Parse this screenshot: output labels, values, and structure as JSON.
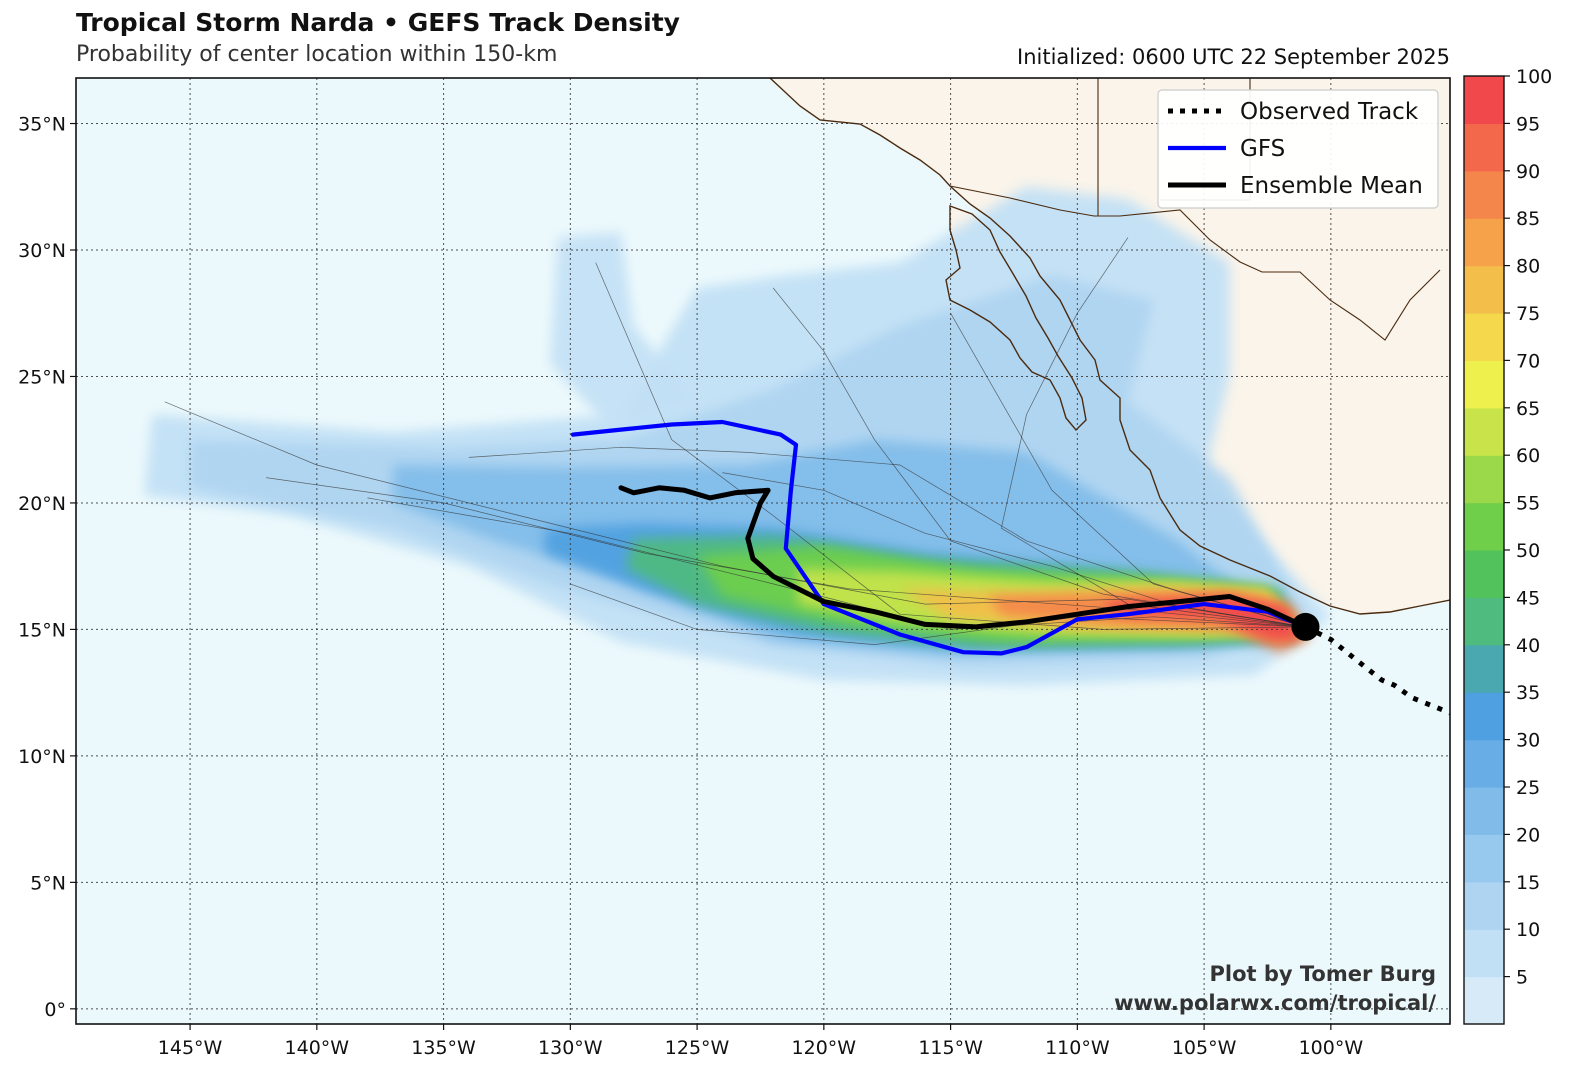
{
  "header": {
    "title": "Tropical Storm Narda • GEFS Track Density",
    "subtitle": "Probability of center location within 150-km",
    "initialized": "Initialized: 0600 UTC 22 September 2025"
  },
  "axes": {
    "lon_labels": [
      "145°W",
      "140°W",
      "135°W",
      "130°W",
      "125°W",
      "120°W",
      "115°W",
      "110°W",
      "105°W",
      "100°W"
    ],
    "lat_labels": [
      "35°N",
      "30°N",
      "25°N",
      "20°N",
      "15°N",
      "10°N",
      "5°N",
      "0°"
    ]
  },
  "legend": {
    "observed": "Observed Track",
    "gfs": "GFS",
    "mean": "Ensemble Mean"
  },
  "colorbar": {
    "ticks": [
      "5",
      "10",
      "15",
      "20",
      "25",
      "30",
      "35",
      "40",
      "45",
      "50",
      "55",
      "60",
      "65",
      "70",
      "75",
      "80",
      "85",
      "90",
      "95",
      "100"
    ],
    "colors": [
      "#d6eaf8",
      "#c2e0f5",
      "#aed4f1",
      "#97c8ee",
      "#80bbe9",
      "#68ade6",
      "#4ea0e0",
      "#4aa9b0",
      "#4fbb7e",
      "#52c35c",
      "#6fcf4a",
      "#9bd84a",
      "#c8e44a",
      "#eef04e",
      "#f5d84c",
      "#f4be4a",
      "#f5a24b",
      "#f4864b",
      "#f3674b",
      "#f0484b"
    ]
  },
  "credit": {
    "line1": "Plot by Tomer Burg",
    "line2": "www.polarwx.com/tropical/"
  },
  "colors": {
    "ocean": "#ecf9fc",
    "land": "#faf4ea",
    "coast": "#4a2b10",
    "gfs": "#0000ff",
    "mean": "#000000"
  },
  "map_data": {
    "lon_range": [
      -149.5,
      -95.3
    ],
    "lat_range": [
      -0.6,
      36.8
    ],
    "storm_center": {
      "lon": -101.0,
      "lat": 15.1
    },
    "gfs_track": [
      [
        -101.0,
        15.1
      ],
      [
        -102.5,
        15.7
      ],
      [
        -105.0,
        16.0
      ],
      [
        -108.0,
        15.6
      ],
      [
        -110.0,
        15.4
      ],
      [
        -112.0,
        14.3
      ],
      [
        -113.0,
        14.05
      ],
      [
        -114.5,
        14.1
      ],
      [
        -117.0,
        14.8
      ],
      [
        -120.0,
        16.0
      ],
      [
        -121.5,
        18.2
      ],
      [
        -121.3,
        20.5
      ],
      [
        -121.1,
        22.3
      ],
      [
        -121.7,
        22.7
      ],
      [
        -124.0,
        23.2
      ],
      [
        -126.0,
        23.1
      ],
      [
        -128.0,
        22.9
      ],
      [
        -129.9,
        22.7
      ]
    ],
    "mean_track": [
      [
        -101.0,
        15.1
      ],
      [
        -102.5,
        15.8
      ],
      [
        -104.0,
        16.3
      ],
      [
        -106.0,
        16.1
      ],
      [
        -108.0,
        15.9
      ],
      [
        -110.0,
        15.6
      ],
      [
        -112.0,
        15.3
      ],
      [
        -114.0,
        15.1
      ],
      [
        -116.0,
        15.2
      ],
      [
        -118.0,
        15.7
      ],
      [
        -120.0,
        16.1
      ],
      [
        -122.0,
        17.1
      ],
      [
        -122.8,
        17.8
      ],
      [
        -123.0,
        18.6
      ],
      [
        -122.5,
        20.0
      ],
      [
        -122.2,
        20.5
      ],
      [
        -123.5,
        20.4
      ],
      [
        -124.5,
        20.2
      ],
      [
        -125.5,
        20.5
      ],
      [
        -126.5,
        20.6
      ],
      [
        -127.5,
        20.4
      ],
      [
        -128.0,
        20.6
      ]
    ],
    "observed_track": [
      [
        -101.0,
        15.1
      ],
      [
        -100.0,
        14.6
      ],
      [
        -99.0,
        13.8
      ],
      [
        -98.0,
        13.0
      ],
      [
        -97.5,
        12.8
      ],
      [
        -96.8,
        12.3
      ],
      [
        -95.3,
        11.7
      ]
    ]
  }
}
